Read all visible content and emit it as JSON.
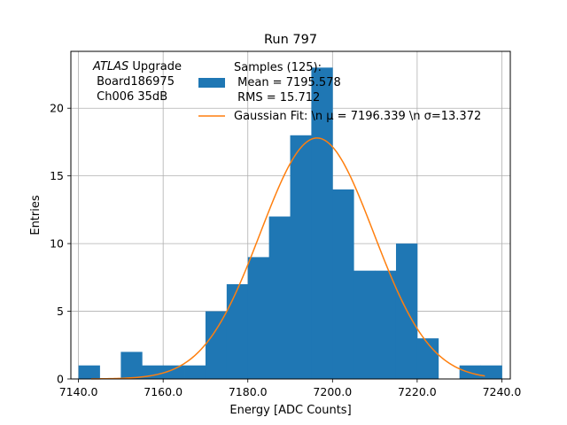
{
  "chart_data": {
    "type": "bar",
    "title": "Run 797",
    "xlabel": "Energy [ADC Counts]",
    "ylabel": "Entries",
    "xlim": [
      7138.2,
      7242.0
    ],
    "ylim": [
      0,
      24.2
    ],
    "xticks": [
      7140,
      7160,
      7180,
      7200,
      7220,
      7240
    ],
    "xtick_labels": [
      "7140.0",
      "7160.0",
      "7180.0",
      "7200.0",
      "7220.0",
      "7240.0"
    ],
    "yticks": [
      0,
      5,
      10,
      15,
      20
    ],
    "ytick_labels": [
      "0",
      "5",
      "10",
      "15",
      "20"
    ],
    "grid": true,
    "bin_width": 5,
    "bins": [
      {
        "x0": 7140,
        "count": 1
      },
      {
        "x0": 7145,
        "count": 0
      },
      {
        "x0": 7150,
        "count": 2
      },
      {
        "x0": 7155,
        "count": 1
      },
      {
        "x0": 7160,
        "count": 1
      },
      {
        "x0": 7165,
        "count": 1
      },
      {
        "x0": 7170,
        "count": 5
      },
      {
        "x0": 7175,
        "count": 7
      },
      {
        "x0": 7180,
        "count": 9
      },
      {
        "x0": 7185,
        "count": 12
      },
      {
        "x0": 7190,
        "count": 18
      },
      {
        "x0": 7195,
        "count": 23
      },
      {
        "x0": 7200,
        "count": 14
      },
      {
        "x0": 7205,
        "count": 8
      },
      {
        "x0": 7210,
        "count": 8
      },
      {
        "x0": 7215,
        "count": 10
      },
      {
        "x0": 7220,
        "count": 3
      },
      {
        "x0": 7225,
        "count": 0
      },
      {
        "x0": 7230,
        "count": 1
      },
      {
        "x0": 7235,
        "count": 1
      }
    ],
    "fit": {
      "mu": 7196.339,
      "sigma": 13.372,
      "amplitude": 17.8,
      "x_range": [
        7143,
        7236
      ]
    },
    "colors": {
      "bars": "#1f77b4",
      "fit": "#ff7f0e",
      "grid": "#b0b0b0"
    },
    "annotation": {
      "lines": [
        {
          "italic": "ATLAS",
          "text": " Upgrade"
        },
        {
          "italic": "",
          "text": " Board186975"
        },
        {
          "italic": "",
          "text": " Ch006 35dB"
        }
      ]
    },
    "legend": {
      "placement": "top-right",
      "entries": [
        {
          "type": "patch",
          "lines": [
            "Samples (125):",
            " Mean = 7195.578",
            " RMS = 15.712"
          ]
        },
        {
          "type": "line",
          "lines": [
            "Gaussian Fit: \\n μ = 7196.339 \\n σ=13.372"
          ]
        }
      ]
    }
  }
}
